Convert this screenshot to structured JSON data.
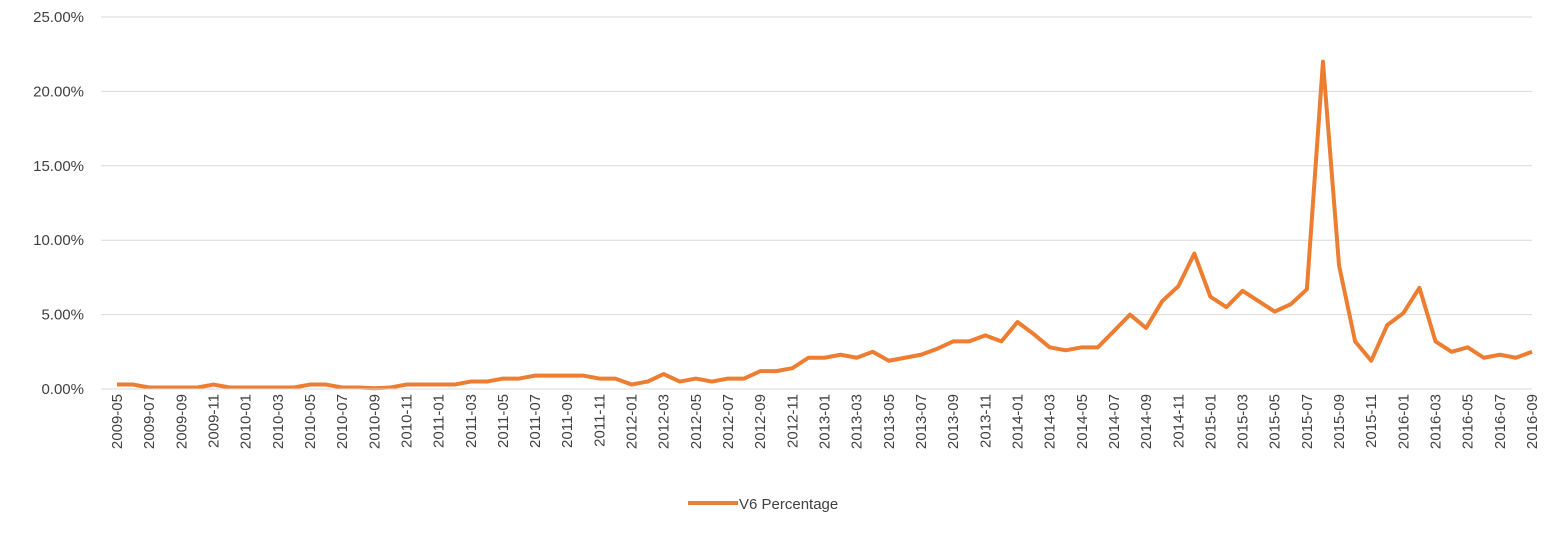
{
  "chart_data": {
    "type": "line",
    "categories": [
      "2009-05",
      null,
      "2009-07",
      null,
      "2009-09",
      null,
      "2009-11",
      null,
      "2010-01",
      null,
      "2010-03",
      null,
      "2010-05",
      null,
      "2010-07",
      null,
      "2010-09",
      null,
      "2010-11",
      null,
      "2011-01",
      null,
      "2011-03",
      null,
      "2011-05",
      null,
      "2011-07",
      null,
      "2011-09",
      null,
      "2011-11",
      null,
      "2012-01",
      null,
      "2012-03",
      null,
      "2012-05",
      null,
      "2012-07",
      null,
      "2012-09",
      null,
      "2012-11",
      null,
      "2013-01",
      null,
      "2013-03",
      null,
      "2013-05",
      null,
      "2013-07",
      null,
      "2013-09",
      null,
      "2013-11",
      null,
      "2014-01",
      null,
      "2014-03",
      null,
      "2014-05",
      null,
      "2014-07",
      null,
      "2014-09",
      null,
      "2014-11",
      null,
      "2015-01",
      null,
      "2015-03",
      null,
      "2015-05",
      null,
      "2015-07",
      null,
      "2015-09",
      null,
      "2015-11",
      null,
      "2016-01",
      null,
      "2016-03",
      null,
      "2016-05",
      null,
      "2016-07",
      null,
      "2016-09"
    ],
    "series": [
      {
        "name": "V6 Percentage",
        "color": "#ed7d31",
        "values": [
          0.3,
          0.3,
          0.1,
          0.1,
          0.1,
          0.1,
          0.3,
          0.1,
          0.1,
          0.1,
          0.1,
          0.1,
          0.3,
          0.3,
          0.1,
          0.1,
          0.05,
          0.1,
          0.3,
          0.3,
          0.3,
          0.3,
          0.5,
          0.5,
          0.7,
          0.7,
          0.9,
          0.9,
          0.9,
          0.9,
          0.7,
          0.7,
          0.3,
          0.5,
          1.0,
          0.5,
          0.7,
          0.5,
          0.7,
          0.7,
          1.2,
          1.2,
          1.4,
          2.1,
          2.1,
          2.3,
          2.1,
          2.5,
          1.9,
          2.1,
          2.3,
          2.7,
          3.2,
          3.2,
          3.6,
          3.2,
          4.5,
          3.7,
          2.8,
          2.6,
          2.8,
          2.8,
          3.9,
          5.0,
          4.1,
          5.9,
          6.9,
          9.1,
          6.2,
          5.5,
          6.6,
          5.9,
          5.2,
          5.7,
          6.7,
          22.0,
          8.3,
          3.2,
          1.9,
          4.3,
          5.1,
          6.8,
          3.2,
          2.5,
          2.8,
          2.1,
          2.3,
          2.1,
          2.5
        ]
      }
    ],
    "ylim": [
      0,
      25
    ],
    "yticks": [
      {
        "value": 0,
        "label": "0.00%"
      },
      {
        "value": 5,
        "label": "5.00%"
      },
      {
        "value": 10,
        "label": "10.00%"
      },
      {
        "value": 15,
        "label": "15.00%"
      },
      {
        "value": 20,
        "label": "20.00%"
      },
      {
        "value": 25,
        "label": "25.00%"
      }
    ],
    "grid": true,
    "legend": "bottom"
  }
}
